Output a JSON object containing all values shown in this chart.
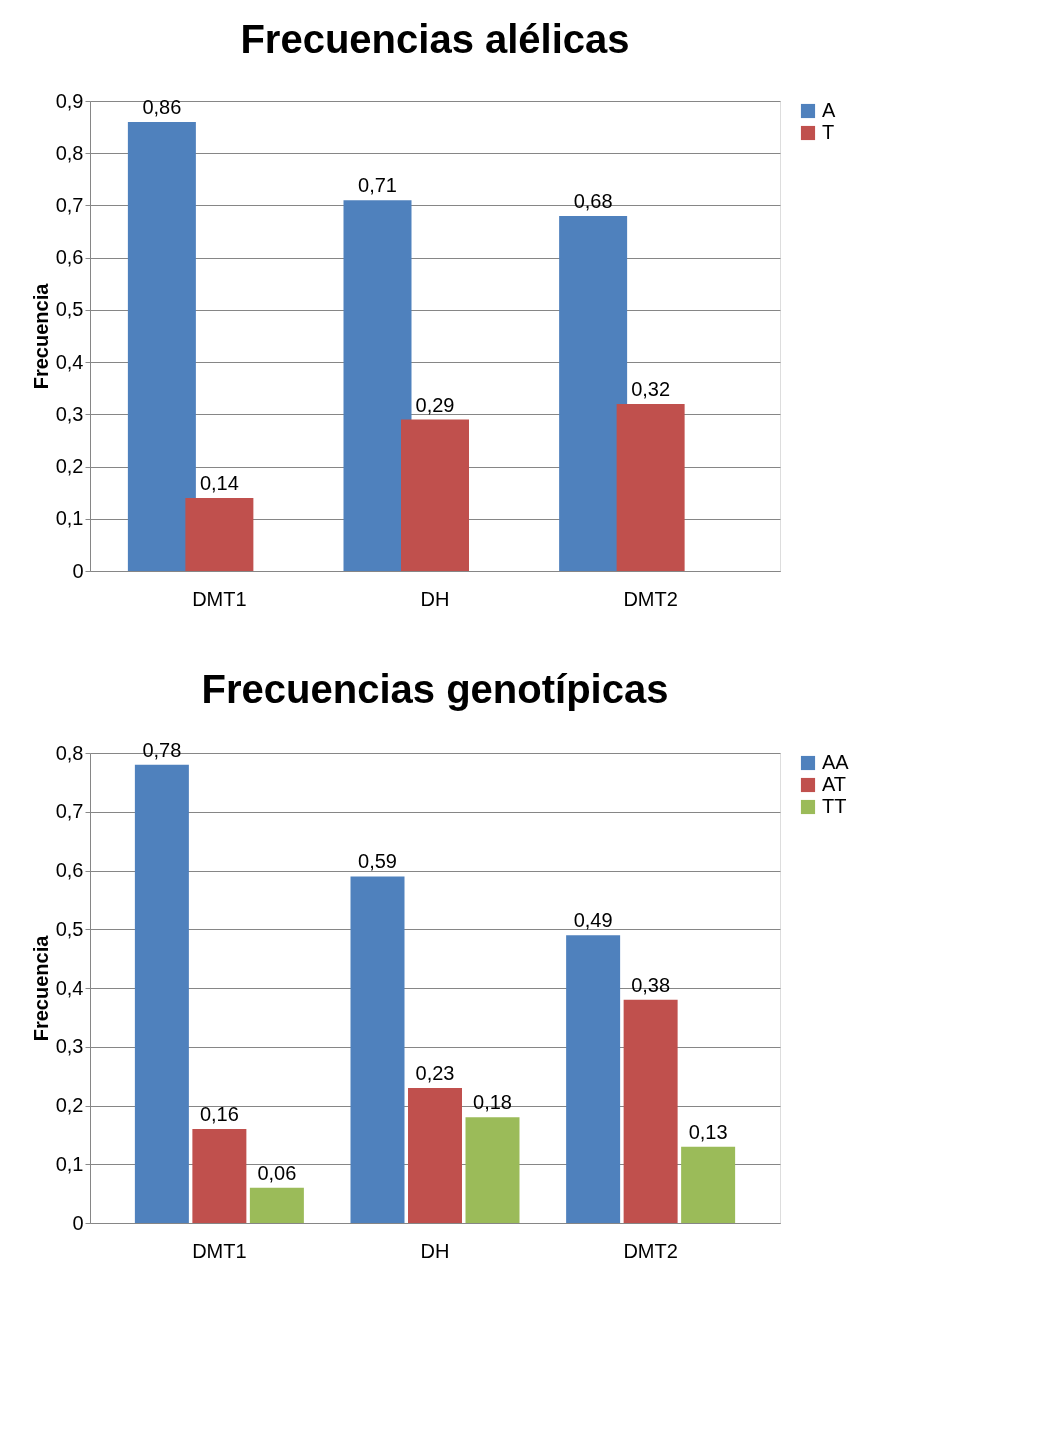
{
  "chart_data": [
    {
      "type": "bar",
      "title": "Frecuencias alélicas",
      "ylabel": "Frecuencia",
      "categories": [
        "DMT1",
        "DH",
        "DMT2"
      ],
      "series": [
        {
          "name": "A",
          "color": "#4f81bd",
          "values": [
            0.86,
            0.71,
            0.68
          ],
          "value_labels": [
            "0,86",
            "0,71",
            "0,68"
          ]
        },
        {
          "name": "T",
          "color": "#c0504d",
          "values": [
            0.14,
            0.29,
            0.32
          ],
          "value_labels": [
            "0,14",
            "0,29",
            "0,32"
          ]
        }
      ],
      "ylim": [
        0,
        0.9
      ],
      "yticks": [
        0,
        {
          "value": 0.1,
          "label": "0,1"
        },
        {
          "value": 0.2,
          "label": "0,2"
        },
        {
          "value": 0.3,
          "label": "0,3"
        },
        {
          "value": 0.4,
          "label": "0,4"
        },
        {
          "value": 0.5,
          "label": "0,5"
        },
        {
          "value": 0.6,
          "label": "0,6"
        },
        {
          "value": 0.7,
          "label": "0,7"
        },
        {
          "value": 0.8,
          "label": "0,8"
        },
        {
          "value": 0.9,
          "label": "0,9"
        }
      ],
      "grid": "y",
      "legend": "right"
    },
    {
      "type": "bar",
      "title": "Frecuencias genotípicas",
      "ylabel": "Frecuencia",
      "categories": [
        "DMT1",
        "DH",
        "DMT2"
      ],
      "series": [
        {
          "name": "AA",
          "color": "#4f81bd",
          "values": [
            0.78,
            0.59,
            0.49
          ],
          "value_labels": [
            "0,78",
            "0,59",
            "0,49"
          ]
        },
        {
          "name": "AT",
          "color": "#c0504d",
          "values": [
            0.16,
            0.23,
            0.38
          ],
          "value_labels": [
            "0,16",
            "0,23",
            "0,38"
          ]
        },
        {
          "name": "TT",
          "color": "#9bbb59",
          "values": [
            0.06,
            0.18,
            0.13
          ],
          "value_labels": [
            "0,06",
            "0,18",
            "0,13"
          ]
        }
      ],
      "ylim": [
        0,
        0.8
      ],
      "yticks": [
        0,
        {
          "value": 0.1,
          "label": "0,1"
        },
        {
          "value": 0.2,
          "label": "0,2"
        },
        {
          "value": 0.3,
          "label": "0,3"
        },
        {
          "value": 0.4,
          "label": "0,4"
        },
        {
          "value": 0.5,
          "label": "0,5"
        },
        {
          "value": 0.6,
          "label": "0,6"
        },
        {
          "value": 0.7,
          "label": "0,7"
        },
        {
          "value": 0.8,
          "label": "0,8"
        }
      ],
      "grid": "y",
      "legend": "right"
    }
  ]
}
